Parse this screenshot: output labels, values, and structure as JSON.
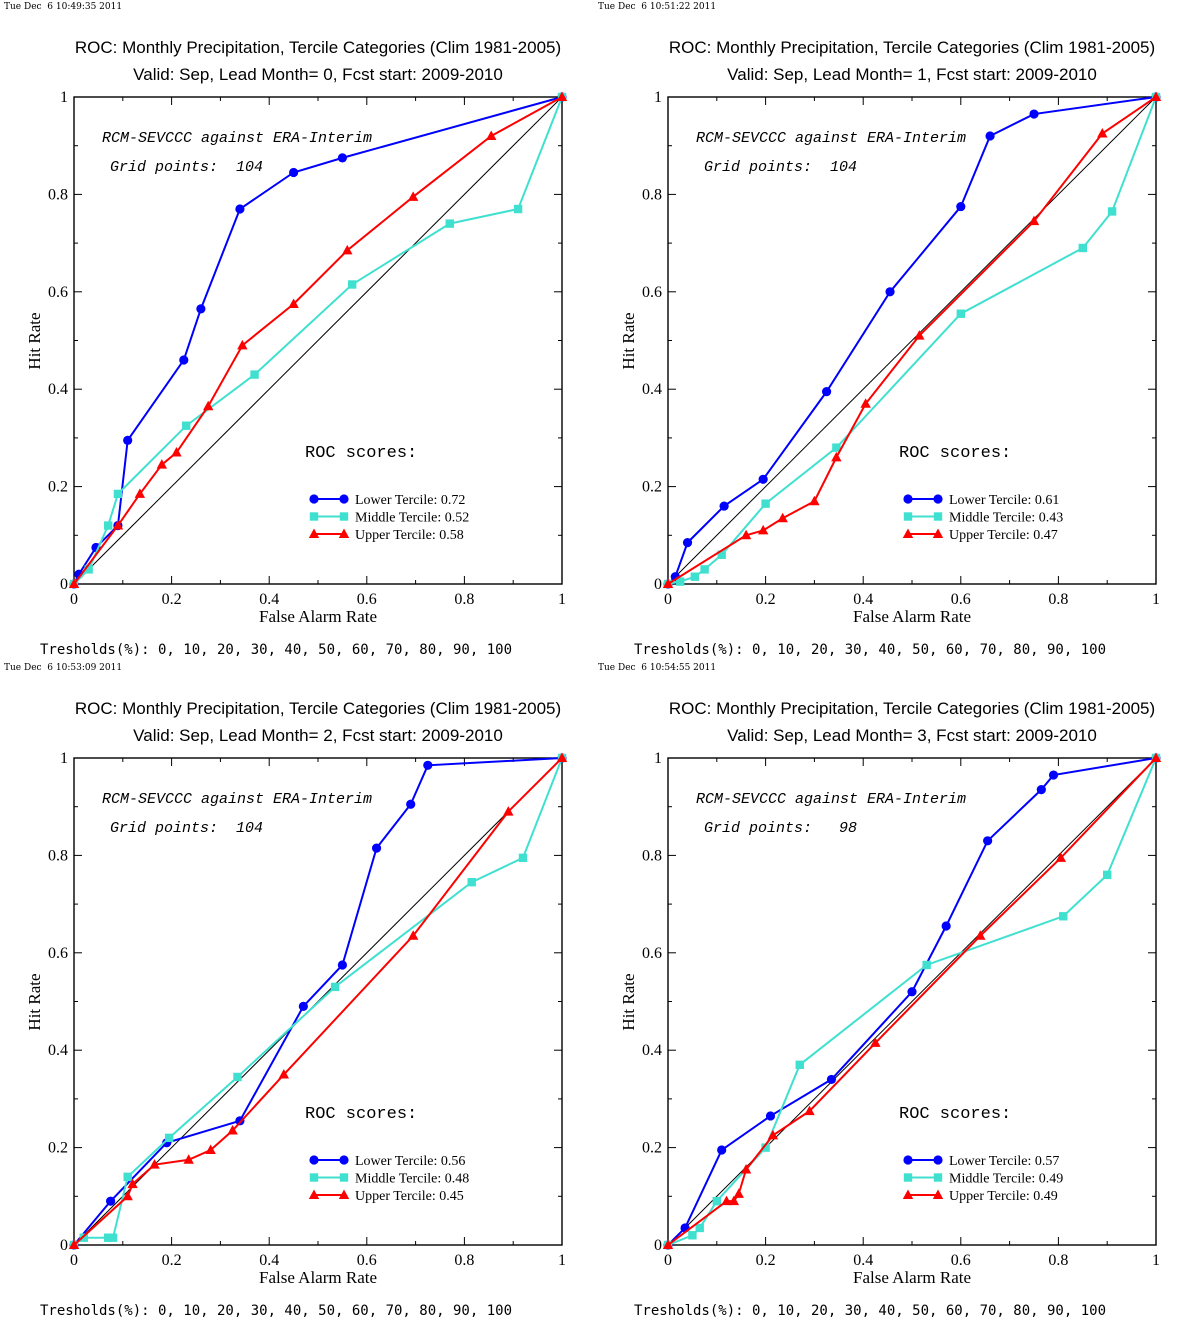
{
  "colors": {
    "lower": "#0000ff",
    "middle": "#40e0d0",
    "upper": "#ff0000",
    "frame": "#000000",
    "diagonal": "#000000"
  },
  "chart_data": [
    {
      "type": "line",
      "timestamp": "Tue Dec  6 10:49:35 2011",
      "title": "ROC: Monthly Precipitation, Tercile Categories (Clim 1981-2005)",
      "subtitle": "Valid: Sep, Lead Month= 0, Fcst start: 2009-2010",
      "xlabel": "False Alarm Rate",
      "ylabel": "Hit Rate",
      "xlim": [
        0,
        1
      ],
      "ylim": [
        0,
        1
      ],
      "xticks": [
        "0",
        "0.2",
        "0.4",
        "0.6",
        "0.8",
        "1"
      ],
      "yticks": [
        "0",
        "0.2",
        "0.4",
        "0.6",
        "0.8",
        "1"
      ],
      "annotation_line1": "RCM-SEVCCC against ERA-Interim",
      "annotation_line2": "Grid points:  104",
      "scores_title": "ROC scores:",
      "thresholds": "Tresholds(%): 0, 10, 20, 30, 40, 50, 60, 70, 80, 90, 100",
      "series": [
        {
          "name": "Lower Tercile: 0.72",
          "marker": "circle",
          "x": [
            0,
            0.01,
            0.045,
            0.09,
            0.11,
            0.225,
            0.26,
            0.34,
            0.45,
            0.55,
            1
          ],
          "y": [
            0,
            0.02,
            0.075,
            0.12,
            0.295,
            0.46,
            0.565,
            0.77,
            0.845,
            0.875,
            1
          ]
        },
        {
          "name": "Middle Tercile: 0.52",
          "marker": "square",
          "x": [
            0,
            0.03,
            0.07,
            0.09,
            0.23,
            0.37,
            0.57,
            0.77,
            0.91,
            1
          ],
          "y": [
            0,
            0.03,
            0.12,
            0.185,
            0.325,
            0.43,
            0.615,
            0.74,
            0.77,
            1
          ],
          "hidden_for_space": false
        },
        {
          "name": "Upper Tercile: 0.58",
          "marker": "triangle",
          "x": [
            0,
            0.09,
            0.135,
            0.18,
            0.21,
            0.275,
            0.345,
            0.45,
            0.56,
            0.695,
            0.855,
            1
          ],
          "y": [
            0,
            0.12,
            0.185,
            0.245,
            0.27,
            0.365,
            0.49,
            0.575,
            0.685,
            0.795,
            0.92,
            1
          ]
        }
      ]
    },
    {
      "type": "line",
      "timestamp": "Tue Dec  6 10:51:22 2011",
      "title": "ROC: Monthly Precipitation, Tercile Categories (Clim 1981-2005)",
      "subtitle": "Valid: Sep, Lead Month= 1, Fcst start: 2009-2010",
      "xlabel": "False Alarm Rate",
      "ylabel": "Hit Rate",
      "xlim": [
        0,
        1
      ],
      "ylim": [
        0,
        1
      ],
      "xticks": [
        "0",
        "0.2",
        "0.4",
        "0.6",
        "0.8",
        "1"
      ],
      "yticks": [
        "0",
        "0.2",
        "0.4",
        "0.6",
        "0.8",
        "1"
      ],
      "annotation_line1": "RCM-SEVCCC against ERA-Interim",
      "annotation_line2": "Grid points:  104",
      "scores_title": "ROC scores:",
      "thresholds": "Tresholds(%): 0, 10, 20, 30, 40, 50, 60, 70, 80, 90, 100",
      "series": [
        {
          "name": "Lower Tercile: 0.61",
          "marker": "circle",
          "x": [
            0,
            0.015,
            0.04,
            0.115,
            0.195,
            0.325,
            0.455,
            0.6,
            0.66,
            0.75,
            1
          ],
          "y": [
            0,
            0.015,
            0.085,
            0.16,
            0.215,
            0.395,
            0.6,
            0.775,
            0.92,
            0.965,
            1
          ]
        },
        {
          "name": "Middle Tercile: 0.43",
          "marker": "square",
          "x": [
            0,
            0.025,
            0.055,
            0.075,
            0.11,
            0.2,
            0.345,
            0.6,
            0.85,
            0.91,
            1
          ],
          "y": [
            0,
            0.005,
            0.015,
            0.03,
            0.06,
            0.165,
            0.28,
            0.555,
            0.69,
            0.765,
            1
          ]
        },
        {
          "name": "Upper Tercile: 0.47",
          "marker": "triangle",
          "x": [
            0,
            0.16,
            0.195,
            0.235,
            0.3,
            0.345,
            0.405,
            0.515,
            0.75,
            0.89,
            1
          ],
          "y": [
            0,
            0.1,
            0.11,
            0.135,
            0.17,
            0.26,
            0.37,
            0.51,
            0.745,
            0.925,
            1
          ]
        }
      ]
    },
    {
      "type": "line",
      "timestamp": "Tue Dec  6 10:53:09 2011",
      "title": "ROC: Monthly Precipitation, Tercile Categories (Clim 1981-2005)",
      "subtitle": "Valid: Sep, Lead Month= 2, Fcst start: 2009-2010",
      "xlabel": "False Alarm Rate",
      "ylabel": "Hit Rate",
      "xlim": [
        0,
        1
      ],
      "ylim": [
        0,
        1
      ],
      "xticks": [
        "0",
        "0.2",
        "0.4",
        "0.6",
        "0.8",
        "1"
      ],
      "yticks": [
        "0",
        "0.2",
        "0.4",
        "0.6",
        "0.8",
        "1"
      ],
      "annotation_line1": "RCM-SEVCCC against ERA-Interim",
      "annotation_line2": "Grid points:  104",
      "scores_title": "ROC scores:",
      "thresholds": "Tresholds(%): 0, 10, 20, 30, 40, 50, 60, 70, 80, 90, 100",
      "series": [
        {
          "name": "Lower Tercile: 0.56",
          "marker": "circle",
          "x": [
            0,
            0.075,
            0.19,
            0.34,
            0.47,
            0.55,
            0.62,
            0.69,
            0.725,
            1
          ],
          "y": [
            0,
            0.09,
            0.21,
            0.255,
            0.49,
            0.575,
            0.815,
            0.905,
            0.985,
            1
          ]
        },
        {
          "name": "Middle Tercile: 0.48",
          "marker": "square",
          "x": [
            0,
            0.02,
            0.07,
            0.08,
            0.11,
            0.195,
            0.335,
            0.535,
            0.815,
            0.92,
            1
          ],
          "y": [
            0,
            0.015,
            0.015,
            0.015,
            0.14,
            0.22,
            0.345,
            0.53,
            0.745,
            0.795,
            1
          ]
        },
        {
          "name": "Upper Tercile: 0.45",
          "marker": "triangle",
          "x": [
            0,
            0.11,
            0.12,
            0.165,
            0.235,
            0.28,
            0.325,
            0.43,
            0.695,
            0.89,
            1
          ],
          "y": [
            0,
            0.1,
            0.125,
            0.165,
            0.175,
            0.195,
            0.235,
            0.35,
            0.635,
            0.89,
            1
          ]
        }
      ]
    },
    {
      "type": "line",
      "timestamp": "Tue Dec  6 10:54:55 2011",
      "title": "ROC: Monthly Precipitation, Tercile Categories (Clim 1981-2005)",
      "subtitle": "Valid: Sep, Lead Month= 3, Fcst start: 2009-2010",
      "xlabel": "False Alarm Rate",
      "ylabel": "Hit Rate",
      "xlim": [
        0,
        1
      ],
      "ylim": [
        0,
        1
      ],
      "xticks": [
        "0",
        "0.2",
        "0.4",
        "0.6",
        "0.8",
        "1"
      ],
      "yticks": [
        "0",
        "0.2",
        "0.4",
        "0.6",
        "0.8",
        "1"
      ],
      "annotation_line1": "RCM-SEVCCC against ERA-Interim",
      "annotation_line2": "Grid points:   98",
      "scores_title": "ROC scores:",
      "thresholds": "Tresholds(%): 0, 10, 20, 30, 40, 50, 60, 70, 80, 90, 100",
      "series": [
        {
          "name": "Lower Tercile: 0.57",
          "marker": "circle",
          "x": [
            0,
            0.035,
            0.11,
            0.21,
            0.335,
            0.5,
            0.57,
            0.655,
            0.765,
            0.79,
            1
          ],
          "y": [
            0,
            0.035,
            0.195,
            0.265,
            0.34,
            0.52,
            0.655,
            0.83,
            0.935,
            0.965,
            1
          ]
        },
        {
          "name": "Middle Tercile: 0.49",
          "marker": "square",
          "x": [
            0,
            0.05,
            0.065,
            0.1,
            0.2,
            0.27,
            0.53,
            0.81,
            0.9,
            1
          ],
          "y": [
            0,
            0.02,
            0.035,
            0.09,
            0.2,
            0.37,
            0.575,
            0.675,
            0.76,
            1
          ]
        },
        {
          "name": "Upper Tercile: 0.49",
          "marker": "triangle",
          "x": [
            0,
            0.12,
            0.135,
            0.145,
            0.16,
            0.215,
            0.29,
            0.425,
            0.64,
            0.805,
            1
          ],
          "y": [
            0,
            0.09,
            0.09,
            0.105,
            0.155,
            0.225,
            0.275,
            0.415,
            0.635,
            0.795,
            1
          ]
        }
      ]
    }
  ]
}
